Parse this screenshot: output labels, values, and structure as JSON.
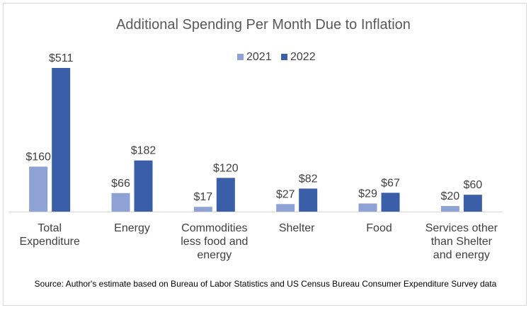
{
  "chart_data": {
    "type": "bar",
    "title": "Additional Spending Per Month Due to Inflation",
    "xlabel": "",
    "ylabel": "",
    "categories": [
      [
        "Total",
        "Expenditure"
      ],
      [
        "Energy"
      ],
      [
        "Commodities",
        "less food and",
        "energy"
      ],
      [
        "Shelter"
      ],
      [
        "Food"
      ],
      [
        "Services other",
        "than Shelter",
        "and energy"
      ]
    ],
    "series": [
      {
        "name": "2021",
        "color": "#8fa2d4",
        "values": [
          160,
          66,
          17,
          27,
          29,
          20
        ],
        "labels": [
          "$160",
          "$66",
          "$17",
          "$27",
          "$29",
          "$20"
        ]
      },
      {
        "name": "2022",
        "color": "#3b5ea8",
        "values": [
          511,
          182,
          120,
          82,
          67,
          60
        ],
        "labels": [
          "$511",
          "$182",
          "$120",
          "$82",
          "$67",
          "$60"
        ]
      }
    ],
    "ylim": [
      0,
      511
    ],
    "grid": false,
    "legend_position": "top-center",
    "axis_color": "#d9d9d9"
  },
  "source_note": "Source: Author's estimate based on Bureau of Labor Statistics  and US Census Bureau Consumer Expenditure Survey data"
}
